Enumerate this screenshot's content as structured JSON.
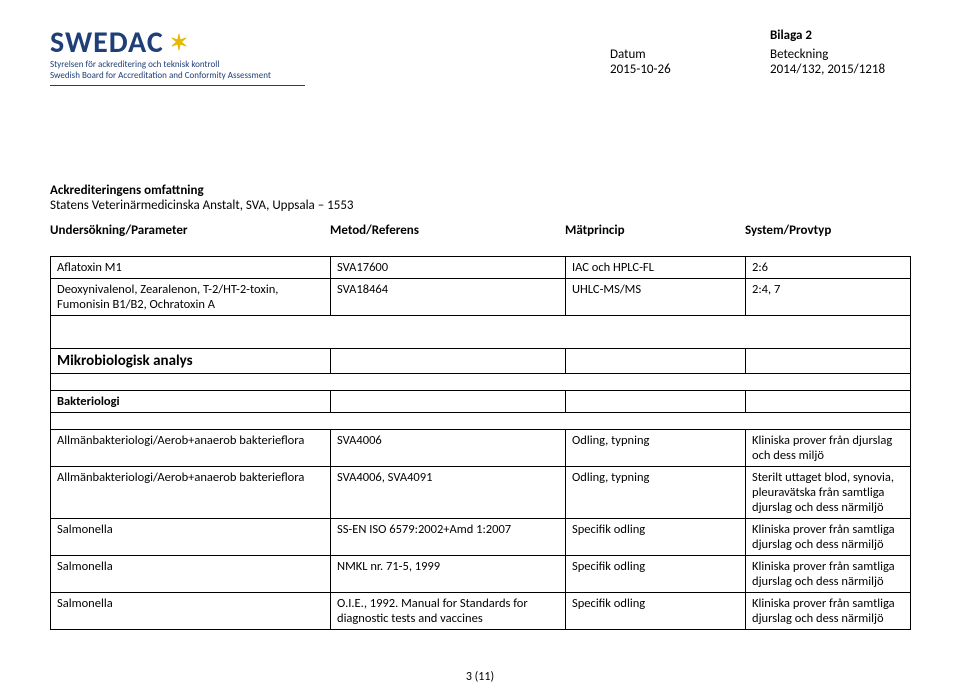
{
  "logo": {
    "word": "SWEDAC",
    "sub_sv": "Styrelsen för ackreditering och teknisk kontroll",
    "sub_en": "Swedish Board for Accreditation and Conformity Assessment"
  },
  "header_right": {
    "bilaga": "Bilaga 2",
    "datum_label": "Datum",
    "datum_value": "2015-10-26",
    "betk_label": "Beteckning",
    "betk_value": "2014/132, 2015/1218"
  },
  "accr": {
    "title": "Ackrediteringens omfattning",
    "line": "Statens Veterinärmedicinska Anstalt, SVA, Uppsala – 1553"
  },
  "cols": {
    "c1": "Undersökning/Parameter",
    "c2": "Metod/Referens",
    "c3": "Mätprincip",
    "c4": "System/Provtyp"
  },
  "rows1": [
    {
      "c1": "Aflatoxin M1",
      "c2": "SVA17600",
      "c3": "IAC och HPLC-FL",
      "c4": "2:6"
    },
    {
      "c1": "Deoxynivalenol, Zearalenon, T-2/HT-2-toxin, Fumonisin B1/B2, Ochratoxin A",
      "c2": "SVA18464",
      "c3": "UHLC-MS/MS",
      "c4": "2:4, 7"
    }
  ],
  "section2_title": "Mikrobiologisk analys",
  "section2_sub": "Bakteriologi",
  "rows2": [
    {
      "c1": "Allmänbakteriologi/Aerob+anaerob bakterieflora",
      "c2": "SVA4006",
      "c3": "Odling, typning",
      "c4": "Kliniska prover från djurslag och dess miljö"
    },
    {
      "c1": "Allmänbakteriologi/Aerob+anaerob bakterieflora",
      "c2": "SVA4006, SVA4091",
      "c3": "Odling, typning",
      "c4": "Sterilt uttaget blod, synovia, pleuravätska från samtliga djurslag och dess närmiljö"
    },
    {
      "c1": "Salmonella",
      "c2": "SS-EN ISO 6579:2002+Amd 1:2007",
      "c3": "Specifik odling",
      "c4": "Kliniska prover från samtliga djurslag och dess närmiljö"
    },
    {
      "c1": "Salmonella",
      "c2": "NMKL nr. 71-5, 1999",
      "c3": "Specifik odling",
      "c4": "Kliniska prover från samtliga djurslag och dess närmiljö"
    },
    {
      "c1": "Salmonella",
      "c2": "O.I.E., 1992. Manual for Standards for diagnostic tests and vaccines",
      "c3": "Specifik odling",
      "c4": "Kliniska prover från samtliga djurslag och dess närmiljö"
    }
  ],
  "pagenum": "3 (11)"
}
